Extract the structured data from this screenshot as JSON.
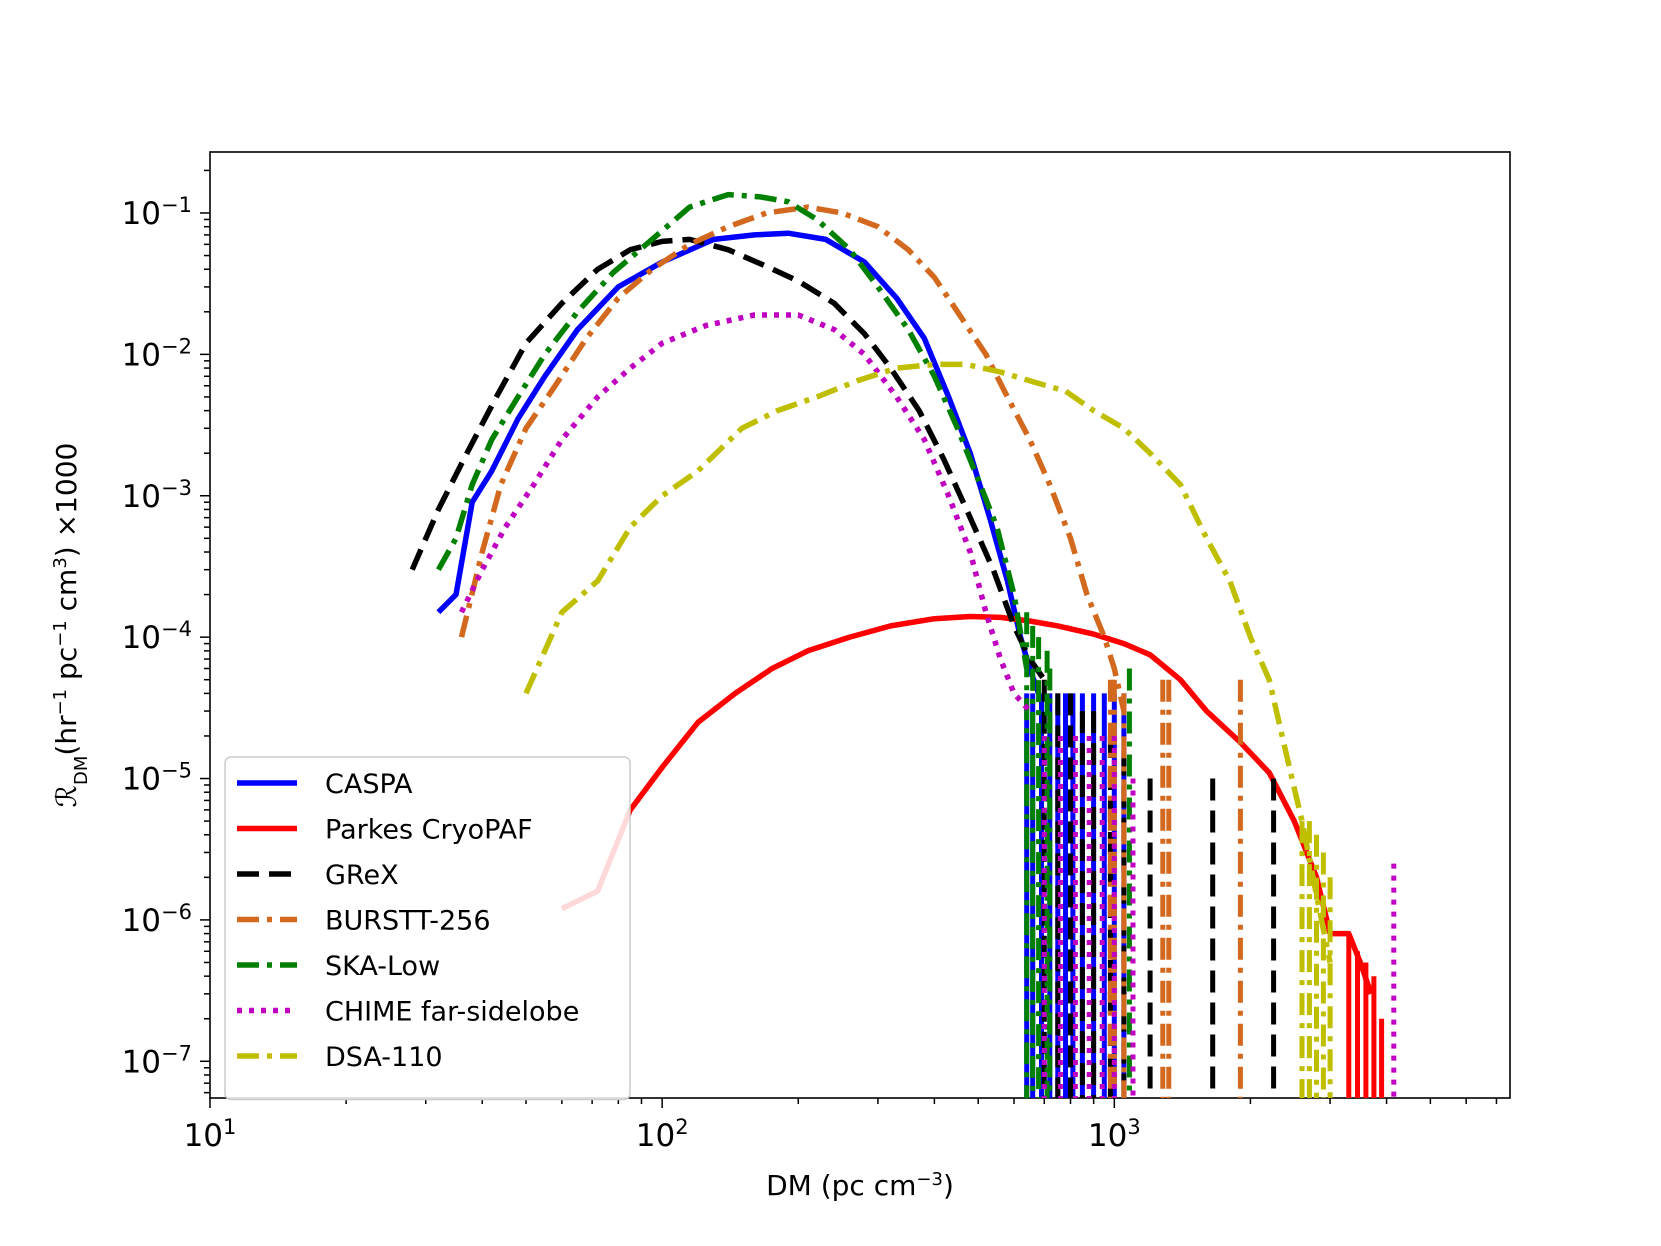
{
  "chart_data": {
    "type": "line",
    "title": "",
    "xlabel": "DM (pc cm⁻³)",
    "ylabel": "R_DM(hr⁻¹ pc⁻¹ cm³) ×1000",
    "ylabel_parts": {
      "symbol": "ℛ",
      "sub": "DM",
      "p1": "(hr",
      "e1": "−1",
      "p2": " pc",
      "e2": "−1",
      "p3": " cm",
      "e3": "3",
      "p4": ") ×1000"
    },
    "xlabel_parts": {
      "main": "DM (pc cm",
      "exp": "−3",
      "close": ")"
    },
    "x_scale": "log",
    "y_scale": "log",
    "xlim": [
      10,
      7500
    ],
    "ylim": [
      5.5e-08,
      0.27
    ],
    "x_ticks": [
      {
        "base": "10",
        "exp": "1",
        "value": 10
      },
      {
        "base": "10",
        "exp": "2",
        "value": 100
      },
      {
        "base": "10",
        "exp": "3",
        "value": 1000
      }
    ],
    "y_ticks": [
      {
        "base": "10",
        "exp": "−1",
        "value": 0.1
      },
      {
        "base": "10",
        "exp": "−2",
        "value": 0.01
      },
      {
        "base": "10",
        "exp": "−3",
        "value": 0.001
      },
      {
        "base": "10",
        "exp": "−4",
        "value": 0.0001
      },
      {
        "base": "10",
        "exp": "−5",
        "value": 1e-05
      },
      {
        "base": "10",
        "exp": "−6",
        "value": 1e-06
      },
      {
        "base": "10",
        "exp": "−7",
        "value": 1e-07
      }
    ],
    "legend_position": "lower-left",
    "series": [
      {
        "name": "CASPA",
        "color": "#0000ff",
        "dash": "solid",
        "points": [
          [
            32,
            0.00015
          ],
          [
            35,
            0.0002
          ],
          [
            38,
            0.0009
          ],
          [
            42,
            0.0015
          ],
          [
            48,
            0.0035
          ],
          [
            55,
            0.007
          ],
          [
            65,
            0.015
          ],
          [
            80,
            0.03
          ],
          [
            100,
            0.045
          ],
          [
            130,
            0.065
          ],
          [
            160,
            0.07
          ],
          [
            190,
            0.072
          ],
          [
            230,
            0.065
          ],
          [
            280,
            0.045
          ],
          [
            330,
            0.025
          ],
          [
            380,
            0.013
          ],
          [
            430,
            0.005
          ],
          [
            480,
            0.002
          ],
          [
            530,
            0.0007
          ],
          [
            580,
            0.00025
          ],
          [
            620,
            0.0001
          ],
          [
            650,
            6e-05
          ],
          [
            680,
            4e-05
          ]
        ],
        "spikes": [
          [
            640,
            4e-05
          ],
          [
            660,
            4e-05
          ],
          [
            690,
            4e-05
          ],
          [
            720,
            4e-05
          ],
          [
            750,
            4e-05
          ],
          [
            780,
            4e-05
          ],
          [
            810,
            4e-05
          ],
          [
            850,
            4e-05
          ],
          [
            900,
            4e-05
          ],
          [
            950,
            4e-05
          ],
          [
            1000,
            4e-05
          ],
          [
            1050,
            4e-05
          ]
        ]
      },
      {
        "name": "Parkes CryoPAF",
        "color": "#ff0000",
        "dash": "solid",
        "points": [
          [
            60,
            1.2e-06
          ],
          [
            72,
            1.6e-06
          ],
          [
            85,
            6e-06
          ],
          [
            100,
            1.2e-05
          ],
          [
            120,
            2.5e-05
          ],
          [
            145,
            4e-05
          ],
          [
            175,
            6e-05
          ],
          [
            210,
            8e-05
          ],
          [
            260,
            0.0001
          ],
          [
            320,
            0.00012
          ],
          [
            400,
            0.000135
          ],
          [
            480,
            0.00014
          ],
          [
            560,
            0.000138
          ],
          [
            650,
            0.00013
          ],
          [
            750,
            0.00012
          ],
          [
            900,
            0.000105
          ],
          [
            1050,
            9e-05
          ],
          [
            1200,
            7.5e-05
          ],
          [
            1400,
            5e-05
          ],
          [
            1600,
            3e-05
          ],
          [
            1900,
            1.8e-05
          ],
          [
            2200,
            1.1e-05
          ],
          [
            2500,
            5e-06
          ],
          [
            2800,
            2e-06
          ],
          [
            3000,
            8e-07
          ],
          [
            3300,
            8e-07
          ],
          [
            3500,
            5e-07
          ],
          [
            3700,
            3e-07
          ]
        ],
        "spikes": [
          [
            3300,
            8e-07
          ],
          [
            3450,
            6e-07
          ],
          [
            3600,
            5e-07
          ],
          [
            3750,
            4e-07
          ],
          [
            3900,
            2e-07
          ]
        ]
      },
      {
        "name": "GReX",
        "color": "#000000",
        "dash": "dashed",
        "points": [
          [
            28,
            0.0003
          ],
          [
            32,
            0.0008
          ],
          [
            37,
            0.002
          ],
          [
            43,
            0.005
          ],
          [
            50,
            0.012
          ],
          [
            60,
            0.023
          ],
          [
            72,
            0.04
          ],
          [
            85,
            0.055
          ],
          [
            100,
            0.063
          ],
          [
            115,
            0.065
          ],
          [
            140,
            0.055
          ],
          [
            170,
            0.042
          ],
          [
            200,
            0.033
          ],
          [
            240,
            0.023
          ],
          [
            280,
            0.014
          ],
          [
            320,
            0.008
          ],
          [
            370,
            0.004
          ],
          [
            420,
            0.0018
          ],
          [
            480,
            0.0007
          ],
          [
            540,
            0.0003
          ],
          [
            600,
            0.00012
          ],
          [
            650,
            7e-05
          ],
          [
            700,
            5e-05
          ]
        ],
        "spikes": [
          [
            700,
            5e-05
          ],
          [
            750,
            4e-05
          ],
          [
            800,
            4e-05
          ],
          [
            850,
            3e-05
          ],
          [
            900,
            3e-05
          ],
          [
            980,
            2e-05
          ],
          [
            1050,
            1.5e-05
          ],
          [
            1200,
            1e-05
          ],
          [
            1650,
            1e-05
          ],
          [
            2250,
            1e-05
          ]
        ]
      },
      {
        "name": "BURSTT-256",
        "color": "#d2691e",
        "dash": "dashdot",
        "points": [
          [
            36,
            0.0001
          ],
          [
            40,
            0.0004
          ],
          [
            44,
            0.0012
          ],
          [
            50,
            0.003
          ],
          [
            58,
            0.006
          ],
          [
            68,
            0.013
          ],
          [
            80,
            0.025
          ],
          [
            95,
            0.04
          ],
          [
            115,
            0.06
          ],
          [
            140,
            0.08
          ],
          [
            170,
            0.1
          ],
          [
            210,
            0.11
          ],
          [
            250,
            0.1
          ],
          [
            300,
            0.08
          ],
          [
            350,
            0.055
          ],
          [
            400,
            0.035
          ],
          [
            450,
            0.02
          ],
          [
            520,
            0.01
          ],
          [
            580,
            0.005
          ],
          [
            650,
            0.0025
          ],
          [
            720,
            0.0012
          ],
          [
            800,
            0.0005
          ],
          [
            870,
            0.0002
          ],
          [
            950,
            0.0001
          ],
          [
            1000,
            6e-05
          ],
          [
            1050,
            3e-05
          ]
        ],
        "spikes": [
          [
            980,
            5e-05
          ],
          [
            1000,
            5e-05
          ],
          [
            1050,
            4e-05
          ],
          [
            1280,
            5e-05
          ],
          [
            1320,
            5e-05
          ],
          [
            1900,
            5e-05
          ]
        ]
      },
      {
        "name": "SKA-Low",
        "color": "#008000",
        "dash": "dashdot",
        "points": [
          [
            32,
            0.0003
          ],
          [
            35,
            0.0005
          ],
          [
            38,
            0.0012
          ],
          [
            42,
            0.0025
          ],
          [
            48,
            0.005
          ],
          [
            55,
            0.01
          ],
          [
            65,
            0.02
          ],
          [
            78,
            0.038
          ],
          [
            95,
            0.065
          ],
          [
            115,
            0.11
          ],
          [
            140,
            0.135
          ],
          [
            165,
            0.13
          ],
          [
            190,
            0.12
          ],
          [
            220,
            0.09
          ],
          [
            260,
            0.055
          ],
          [
            300,
            0.03
          ],
          [
            350,
            0.015
          ],
          [
            400,
            0.007
          ],
          [
            450,
            0.003
          ],
          [
            500,
            0.0013
          ],
          [
            550,
            0.0006
          ],
          [
            600,
            0.0002
          ],
          [
            640,
            6e-05
          ]
        ],
        "spikes": [
          [
            640,
            0.00015
          ],
          [
            660,
            0.00012
          ],
          [
            680,
            0.0001
          ],
          [
            710,
            8e-05
          ],
          [
            720,
            6e-05
          ],
          [
            1080,
            6e-05
          ]
        ]
      },
      {
        "name": "CHIME far-sidelobe",
        "color": "#c000c0",
        "dash": "dotted",
        "points": [
          [
            36,
            0.00015
          ],
          [
            40,
            0.0003
          ],
          [
            45,
            0.0006
          ],
          [
            52,
            0.0012
          ],
          [
            60,
            0.0025
          ],
          [
            72,
            0.005
          ],
          [
            85,
            0.008
          ],
          [
            100,
            0.012
          ],
          [
            125,
            0.016
          ],
          [
            160,
            0.019
          ],
          [
            200,
            0.019
          ],
          [
            240,
            0.015
          ],
          [
            280,
            0.01
          ],
          [
            330,
            0.005
          ],
          [
            380,
            0.0025
          ],
          [
            430,
            0.001
          ],
          [
            480,
            0.0004
          ],
          [
            520,
            0.00015
          ],
          [
            560,
            7e-05
          ],
          [
            600,
            4e-05
          ],
          [
            650,
            3e-05
          ]
        ],
        "spikes": [
          [
            700,
            2e-05
          ],
          [
            760,
            2e-05
          ],
          [
            820,
            2e-05
          ],
          [
            880,
            2e-05
          ],
          [
            940,
            2e-05
          ],
          [
            1000,
            2e-05
          ],
          [
            1100,
            1e-05
          ],
          [
            4150,
            2.5e-06
          ]
        ]
      },
      {
        "name": "DSA-110",
        "color": "#bfbf00",
        "dash": "dashdot",
        "points": [
          [
            50,
            4e-05
          ],
          [
            60,
            0.00015
          ],
          [
            72,
            0.00025
          ],
          [
            85,
            0.0006
          ],
          [
            100,
            0.001
          ],
          [
            120,
            0.0015
          ],
          [
            150,
            0.003
          ],
          [
            180,
            0.004
          ],
          [
            220,
            0.005
          ],
          [
            270,
            0.0065
          ],
          [
            330,
            0.008
          ],
          [
            400,
            0.0085
          ],
          [
            470,
            0.0085
          ],
          [
            560,
            0.0075
          ],
          [
            650,
            0.0065
          ],
          [
            780,
            0.0055
          ],
          [
            900,
            0.004
          ],
          [
            1050,
            0.003
          ],
          [
            1200,
            0.002
          ],
          [
            1400,
            0.0012
          ],
          [
            1600,
            0.0005
          ],
          [
            1800,
            0.00025
          ],
          [
            2000,
            0.0001
          ],
          [
            2200,
            5e-05
          ],
          [
            2400,
            1.5e-05
          ],
          [
            2600,
            5e-06
          ],
          [
            2800,
            1.5e-06
          ],
          [
            3000,
            5e-07
          ]
        ],
        "spikes": [
          [
            2600,
            5e-06
          ],
          [
            2700,
            5e-06
          ],
          [
            2800,
            4e-06
          ],
          [
            2900,
            3e-06
          ],
          [
            3000,
            2e-06
          ]
        ]
      }
    ]
  }
}
